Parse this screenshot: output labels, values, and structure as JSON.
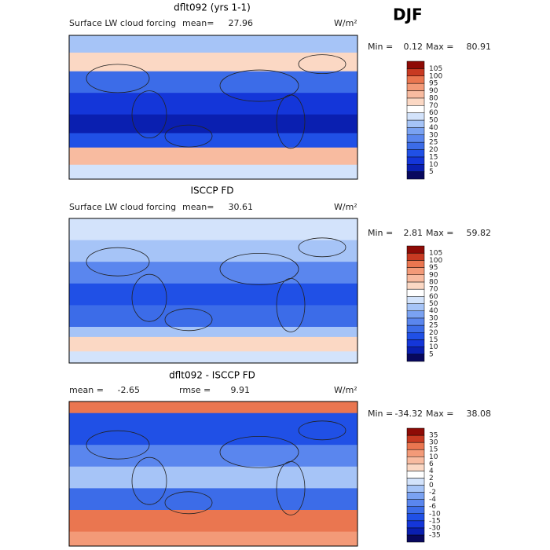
{
  "title": "DJF",
  "panels": [
    {
      "title": "dflt092 (yrs 1-1)",
      "field": "Surface LW cloud forcing",
      "stats": [
        {
          "label": "mean=",
          "value": 27.96
        }
      ],
      "units": "W/m²",
      "min_label": "Min =",
      "min": 0.12,
      "max_label": "Max =",
      "max": 80.91,
      "colorbar": {
        "levels": [
          5,
          10,
          15,
          20,
          25,
          30,
          40,
          50,
          60,
          70,
          80,
          90,
          95,
          100,
          105
        ],
        "colors": [
          "#08085e",
          "#0a1fb0",
          "#1436d9",
          "#2050e6",
          "#3c6ce8",
          "#5a86ee",
          "#7aa2f2",
          "#a6c4f7",
          "#d3e3fb",
          "#ffffff",
          "#fbd8c4",
          "#f8bba0",
          "#f39a78",
          "#ea7650",
          "#c83a22",
          "#8e0b06"
        ]
      }
    },
    {
      "title": "ISCCP FD",
      "field": "Surface LW cloud forcing",
      "stats": [
        {
          "label": "mean=",
          "value": 30.61
        }
      ],
      "units": "W/m²",
      "min_label": "Min =",
      "min": 2.81,
      "max_label": "Max =",
      "max": 59.82,
      "colorbar": {
        "levels": [
          5,
          10,
          15,
          20,
          25,
          30,
          40,
          50,
          60,
          70,
          80,
          90,
          95,
          100,
          105
        ],
        "colors": [
          "#08085e",
          "#0a1fb0",
          "#1436d9",
          "#2050e6",
          "#3c6ce8",
          "#5a86ee",
          "#7aa2f2",
          "#a6c4f7",
          "#d3e3fb",
          "#ffffff",
          "#fbd8c4",
          "#f8bba0",
          "#f39a78",
          "#ea7650",
          "#c83a22",
          "#8e0b06"
        ]
      }
    },
    {
      "title": "dflt092 - ISCCP FD",
      "stats": [
        {
          "label": "mean =",
          "value": -2.65
        },
        {
          "label": "rmse =",
          "value": 9.91
        }
      ],
      "units": "W/m²",
      "min_label": "Min =",
      "min": -34.32,
      "max_label": "Max =",
      "max": 38.08,
      "colorbar": {
        "levels": [
          -35,
          -30,
          -15,
          -10,
          -6,
          -4,
          -2,
          0,
          2,
          4,
          6,
          10,
          15,
          30,
          35
        ],
        "colors": [
          "#08085e",
          "#0a1fb0",
          "#1436d9",
          "#2050e6",
          "#3c6ce8",
          "#5a86ee",
          "#7aa2f2",
          "#a6c4f7",
          "#d3e3fb",
          "#ffffff",
          "#fbd8c4",
          "#f8bba0",
          "#f39a78",
          "#ea7650",
          "#c83a22",
          "#8e0b06"
        ]
      }
    }
  ]
}
